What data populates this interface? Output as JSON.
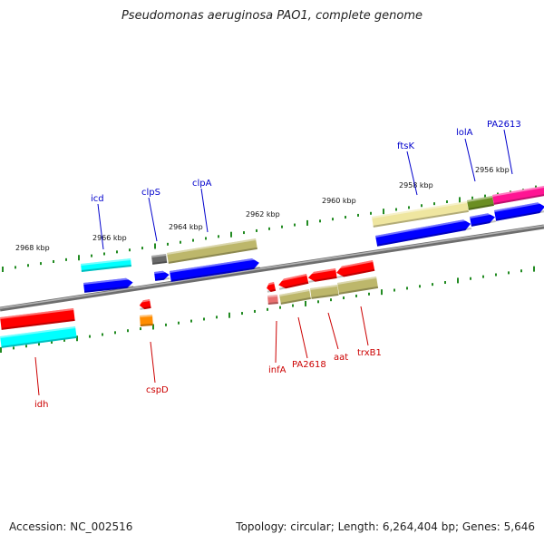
{
  "title": "Pseudomonas aeruginosa PAO1, complete genome",
  "footer": {
    "accession_label": "Accession:",
    "accession": "NC_002516",
    "topology_label": "Topology:",
    "topology": "circular;",
    "length_label": "Length:",
    "length": "6,264,404 bp;",
    "genes_label": "Genes:",
    "genes": "5,646"
  },
  "ruler": [
    {
      "label": "2968 kbp"
    },
    {
      "label": "2966 kbp"
    },
    {
      "label": "2964 kbp"
    },
    {
      "label": "2962 kbp"
    },
    {
      "label": "2960 kbp"
    },
    {
      "label": "2958 kbp"
    },
    {
      "label": "2956 kbp"
    }
  ],
  "genes_top": [
    {
      "name": "icd",
      "color": "#0000cc"
    },
    {
      "name": "clpS",
      "color": "#0000cc"
    },
    {
      "name": "clpA",
      "color": "#0000cc"
    },
    {
      "name": "ftsK",
      "color": "#0000cc"
    },
    {
      "name": "lolA",
      "color": "#0000cc"
    },
    {
      "name": "PA2613",
      "color": "#0000cc"
    }
  ],
  "genes_bottom": [
    {
      "name": "idh",
      "color": "#cc0000"
    },
    {
      "name": "cspD",
      "color": "#cc0000"
    },
    {
      "name": "infA",
      "color": "#cc0000"
    },
    {
      "name": "PA2618",
      "color": "#cc0000"
    },
    {
      "name": "aat",
      "color": "#cc0000"
    },
    {
      "name": "trxB1",
      "color": "#cc0000"
    }
  ],
  "colors": {
    "forward_gene": "#0000ff",
    "reverse_gene": "#ff0000",
    "cds_khaki": "#bdb76b",
    "cds_cyan": "#00ffff",
    "backbone": "#888888",
    "tick": "#228b22"
  }
}
